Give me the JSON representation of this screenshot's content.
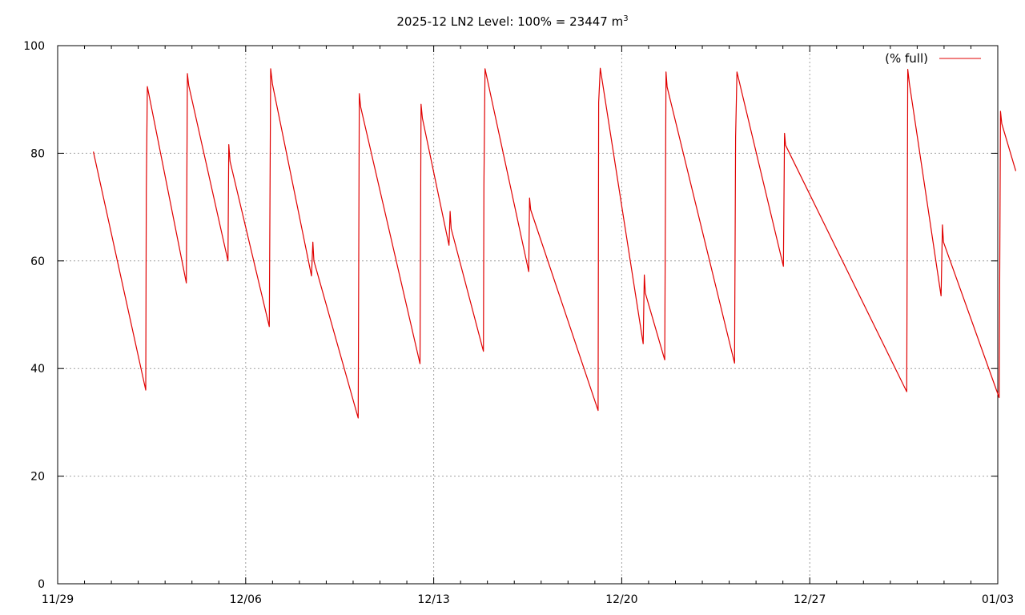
{
  "chart_data": {
    "type": "line",
    "title": "2025-12 LN2 Level: 100% = 23447 m",
    "title_superscript": "3",
    "xlabel": "",
    "ylabel": "",
    "ylim": [
      0,
      100
    ],
    "yticks": [
      0,
      20,
      40,
      60,
      80,
      100
    ],
    "xlim_days": [
      0,
      35
    ],
    "xticks": [
      {
        "day": 0,
        "label": "11/29"
      },
      {
        "day": 7,
        "label": "12/06"
      },
      {
        "day": 14,
        "label": "12/13"
      },
      {
        "day": 21,
        "label": "12/20"
      },
      {
        "day": 28,
        "label": "12/27"
      },
      {
        "day": 35,
        "label": "01/03"
      }
    ],
    "grid": true,
    "legend_position": "top-right",
    "series": [
      {
        "name": "(% full)",
        "color": "#e00000",
        "x": [
          1.33,
          3.28,
          3.3,
          3.34,
          4.79,
          4.83,
          4.88,
          6.34,
          6.37,
          6.42,
          7.88,
          7.93,
          8.0,
          9.45,
          9.5,
          9.54,
          11.19,
          11.23,
          11.28,
          13.49,
          13.53,
          13.58,
          14.57,
          14.61,
          14.65,
          15.85,
          15.87,
          15.91,
          17.54,
          17.57,
          17.61,
          20.12,
          20.14,
          20.2,
          21.8,
          21.84,
          21.88,
          22.6,
          22.65,
          22.69,
          25.2,
          25.24,
          25.29,
          27.02,
          27.06,
          27.1,
          31.61,
          31.65,
          31.71,
          32.89,
          32.94,
          32.98,
          35.05,
          35.1,
          35.15,
          35.67
        ],
        "y": [
          80.3,
          36.0,
          73.0,
          92.4,
          55.9,
          94.8,
          92.6,
          60.0,
          81.6,
          78.5,
          47.8,
          95.7,
          92.8,
          57.2,
          63.5,
          60.0,
          30.8,
          91.1,
          88.6,
          40.9,
          89.1,
          86.5,
          62.9,
          69.2,
          66.0,
          43.2,
          74.0,
          95.7,
          58.0,
          71.7,
          69.5,
          32.2,
          89.5,
          95.8,
          44.6,
          57.4,
          54.0,
          41.6,
          95.1,
          92.3,
          41.0,
          83.0,
          95.1,
          59.0,
          83.7,
          81.5,
          35.7,
          95.6,
          93.0,
          53.5,
          66.7,
          63.5,
          34.6,
          87.8,
          85.5,
          76.7
        ]
      }
    ]
  }
}
